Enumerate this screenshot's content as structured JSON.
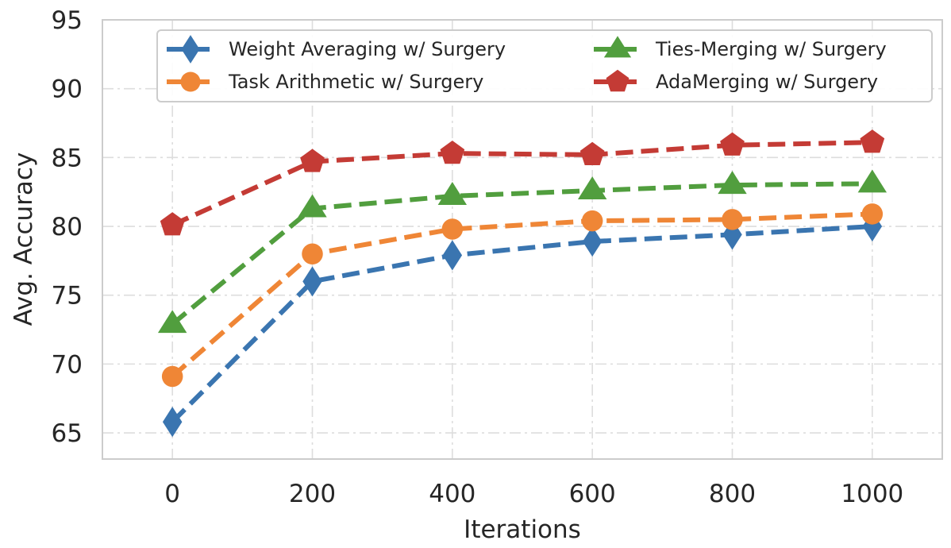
{
  "chart_data": {
    "type": "line",
    "title": "",
    "xlabel": "Iterations",
    "ylabel": "Avg. Accuracy",
    "x": [
      0,
      200,
      400,
      600,
      800,
      1000
    ],
    "x_ticks": [
      "0",
      "200",
      "400",
      "600",
      "800",
      "1000"
    ],
    "y_ticks": [
      "65",
      "70",
      "75",
      "80",
      "85",
      "90",
      "95"
    ],
    "xlim": [
      -100,
      1100
    ],
    "ylim": [
      63.1,
      95
    ],
    "grid": true,
    "legend_position": "top-right",
    "series": [
      {
        "name": "Weight Averaging w/ Surgery",
        "color": "#3a75b0",
        "marker": "diamond",
        "values": [
          65.8,
          76.0,
          77.9,
          78.9,
          79.4,
          80.0
        ]
      },
      {
        "name": "Task Arithmetic w/ Surgery",
        "color": "#ef8636",
        "marker": "circle",
        "values": [
          69.1,
          78.0,
          79.8,
          80.4,
          80.5,
          80.9
        ]
      },
      {
        "name": "Ties-Merging w/ Surgery",
        "color": "#519e3e",
        "marker": "triangle",
        "values": [
          72.9,
          81.3,
          82.2,
          82.6,
          83.0,
          83.1
        ]
      },
      {
        "name": "AdaMerging w/ Surgery",
        "color": "#c43b35",
        "marker": "pentagon",
        "values": [
          80.1,
          84.7,
          85.3,
          85.2,
          85.9,
          86.1
        ]
      }
    ]
  }
}
